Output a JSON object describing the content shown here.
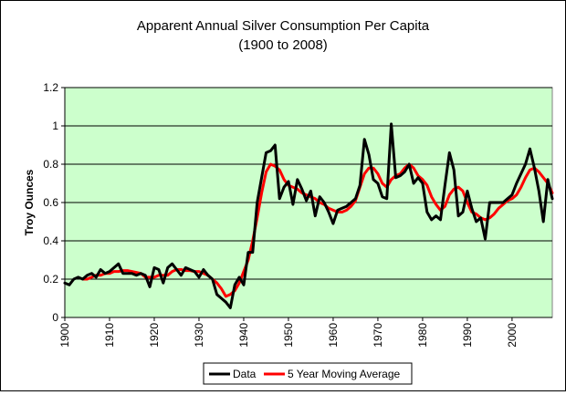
{
  "chart_data": {
    "type": "line",
    "title": "Apparent Annual Silver Consumption Per Capita",
    "subtitle": "(1900 to 2008)",
    "xlabel": "",
    "ylabel": "Troy Ounces",
    "xlim": [
      1900,
      2009
    ],
    "ylim": [
      0,
      1.2
    ],
    "xticks": [
      "1900",
      "1910",
      "1920",
      "1930",
      "1940",
      "1950",
      "1960",
      "1970",
      "1980",
      "1990",
      "2000"
    ],
    "yticks": [
      "0",
      "0.2",
      "0.4",
      "0.6",
      "0.8",
      "1",
      "1.2"
    ],
    "grid": "horizontal",
    "legend_position": "bottom",
    "plot_background": "#ccffcc",
    "series": [
      {
        "name": "Data",
        "color": "#000000",
        "x": [
          1900,
          1901,
          1902,
          1903,
          1904,
          1905,
          1906,
          1907,
          1908,
          1909,
          1910,
          1911,
          1912,
          1913,
          1914,
          1915,
          1916,
          1917,
          1918,
          1919,
          1920,
          1921,
          1922,
          1923,
          1924,
          1925,
          1926,
          1927,
          1928,
          1929,
          1930,
          1931,
          1932,
          1933,
          1934,
          1935,
          1936,
          1937,
          1938,
          1939,
          1940,
          1941,
          1942,
          1943,
          1944,
          1945,
          1946,
          1947,
          1948,
          1949,
          1950,
          1951,
          1952,
          1953,
          1954,
          1955,
          1956,
          1957,
          1958,
          1959,
          1960,
          1961,
          1962,
          1963,
          1964,
          1965,
          1966,
          1967,
          1968,
          1969,
          1970,
          1971,
          1972,
          1973,
          1974,
          1975,
          1976,
          1977,
          1978,
          1979,
          1980,
          1981,
          1982,
          1983,
          1984,
          1985,
          1986,
          1987,
          1988,
          1989,
          1990,
          1991,
          1992,
          1993,
          1994,
          1995,
          1996,
          1997,
          1998,
          1999,
          2000,
          2001,
          2002,
          2003,
          2004,
          2005,
          2006,
          2007,
          2008,
          2009
        ],
        "y": [
          0.18,
          0.17,
          0.2,
          0.21,
          0.2,
          0.22,
          0.23,
          0.21,
          0.25,
          0.23,
          0.24,
          0.26,
          0.28,
          0.23,
          0.23,
          0.23,
          0.22,
          0.23,
          0.22,
          0.16,
          0.26,
          0.25,
          0.18,
          0.26,
          0.28,
          0.25,
          0.22,
          0.26,
          0.25,
          0.24,
          0.21,
          0.25,
          0.22,
          0.2,
          0.12,
          0.1,
          0.08,
          0.05,
          0.17,
          0.21,
          0.17,
          0.34,
          0.34,
          0.6,
          0.73,
          0.86,
          0.87,
          0.9,
          0.62,
          0.68,
          0.71,
          0.59,
          0.72,
          0.67,
          0.61,
          0.66,
          0.53,
          0.63,
          0.6,
          0.55,
          0.49,
          0.56,
          0.57,
          0.58,
          0.6,
          0.62,
          0.69,
          0.93,
          0.85,
          0.72,
          0.7,
          0.63,
          0.62,
          1.01,
          0.73,
          0.74,
          0.76,
          0.8,
          0.7,
          0.73,
          0.7,
          0.55,
          0.51,
          0.53,
          0.51,
          0.69,
          0.86,
          0.77,
          0.53,
          0.55,
          0.66,
          0.57,
          0.5,
          0.52,
          0.41,
          0.6,
          0.6,
          0.6,
          0.6,
          0.62,
          0.64,
          0.7,
          0.75,
          0.8,
          0.88,
          0.78,
          0.66,
          0.5,
          0.72,
          0.62
        ]
      },
      {
        "name": "5 Year Moving Average",
        "color": "#ff0000",
        "x": [
          1904,
          1905,
          1906,
          1907,
          1908,
          1909,
          1910,
          1911,
          1912,
          1913,
          1914,
          1915,
          1916,
          1917,
          1918,
          1919,
          1920,
          1921,
          1922,
          1923,
          1924,
          1925,
          1926,
          1927,
          1928,
          1929,
          1930,
          1931,
          1932,
          1933,
          1934,
          1935,
          1936,
          1937,
          1938,
          1939,
          1940,
          1941,
          1942,
          1943,
          1944,
          1945,
          1946,
          1947,
          1948,
          1949,
          1950,
          1951,
          1952,
          1953,
          1954,
          1955,
          1956,
          1957,
          1958,
          1959,
          1960,
          1961,
          1962,
          1963,
          1964,
          1965,
          1966,
          1967,
          1968,
          1969,
          1970,
          1971,
          1972,
          1973,
          1974,
          1975,
          1976,
          1977,
          1978,
          1979,
          1980,
          1981,
          1982,
          1983,
          1984,
          1985,
          1986,
          1987,
          1988,
          1989,
          1990,
          1991,
          1992,
          1993,
          1994,
          1995,
          1996,
          1997,
          1998,
          1999,
          2000,
          2001,
          2002,
          2003,
          2004,
          2005,
          2006,
          2007,
          2008,
          2009
        ],
        "y": [
          0.2,
          0.2,
          0.21,
          0.22,
          0.22,
          0.23,
          0.23,
          0.24,
          0.24,
          0.245,
          0.245,
          0.24,
          0.235,
          0.23,
          0.21,
          0.21,
          0.21,
          0.22,
          0.22,
          0.22,
          0.24,
          0.25,
          0.25,
          0.245,
          0.245,
          0.24,
          0.24,
          0.23,
          0.22,
          0.2,
          0.18,
          0.15,
          0.11,
          0.12,
          0.14,
          0.18,
          0.24,
          0.3,
          0.4,
          0.52,
          0.65,
          0.76,
          0.8,
          0.79,
          0.77,
          0.72,
          0.69,
          0.68,
          0.67,
          0.65,
          0.64,
          0.63,
          0.62,
          0.6,
          0.59,
          0.57,
          0.56,
          0.55,
          0.55,
          0.56,
          0.58,
          0.61,
          0.68,
          0.75,
          0.78,
          0.78,
          0.75,
          0.7,
          0.68,
          0.72,
          0.74,
          0.75,
          0.78,
          0.8,
          0.78,
          0.74,
          0.72,
          0.69,
          0.63,
          0.59,
          0.56,
          0.58,
          0.64,
          0.67,
          0.68,
          0.66,
          0.6,
          0.55,
          0.54,
          0.52,
          0.51,
          0.52,
          0.54,
          0.57,
          0.59,
          0.61,
          0.62,
          0.64,
          0.68,
          0.73,
          0.77,
          0.78,
          0.76,
          0.73,
          0.7,
          0.65
        ]
      }
    ]
  }
}
